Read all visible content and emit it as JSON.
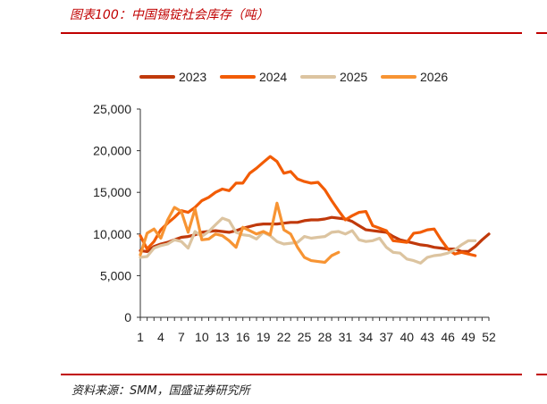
{
  "header": {
    "title": "图表100：中国锡锭社会库存（吨）"
  },
  "footer": {
    "source": "资料来源：SMM，国盛证券研究所"
  },
  "chart_data": {
    "type": "line",
    "title": "中国锡锭社会库存（吨）",
    "xlabel": "",
    "ylabel": "",
    "ylim": [
      0,
      25000
    ],
    "xlim": [
      1,
      52
    ],
    "yticks": [
      0,
      5000,
      10000,
      15000,
      20000,
      25000
    ],
    "ytick_labels": [
      "0",
      "5,000",
      "10,000",
      "15,000",
      "20,000",
      "25,000"
    ],
    "xticks": [
      1,
      4,
      7,
      10,
      13,
      16,
      19,
      22,
      25,
      28,
      31,
      34,
      37,
      40,
      43,
      46,
      49,
      52
    ],
    "grid": false,
    "legend_position": "top",
    "series": [
      {
        "name": "2023",
        "color": "#c0390b",
        "x": [
          1,
          2,
          3,
          4,
          5,
          6,
          7,
          8,
          9,
          10,
          11,
          12,
          13,
          14,
          15,
          16,
          17,
          18,
          19,
          20,
          21,
          22,
          23,
          24,
          25,
          26,
          27,
          28,
          29,
          30,
          31,
          32,
          33,
          34,
          35,
          36,
          37,
          38,
          39,
          40,
          41,
          42,
          43,
          44,
          45,
          46,
          47,
          48,
          49,
          50,
          51,
          52
        ],
        "values": [
          8000,
          7900,
          8500,
          8800,
          9000,
          9300,
          9600,
          9700,
          9900,
          10200,
          10300,
          10400,
          10300,
          10200,
          10400,
          10700,
          10900,
          11100,
          11200,
          11200,
          11200,
          11300,
          11400,
          11400,
          11600,
          11700,
          11700,
          11800,
          12000,
          11900,
          11800,
          11500,
          11000,
          10500,
          10400,
          10300,
          10200,
          9700,
          9300,
          9100,
          8900,
          8700,
          8600,
          8400,
          8300,
          8200,
          8200,
          7900,
          7900,
          8500,
          9300,
          10000
        ]
      },
      {
        "name": "2024",
        "color": "#f25c05",
        "x": [
          1,
          2,
          3,
          4,
          5,
          6,
          7,
          8,
          9,
          10,
          11,
          12,
          13,
          14,
          15,
          16,
          17,
          18,
          19,
          20,
          21,
          22,
          23,
          24,
          25,
          26,
          27,
          28,
          29,
          30,
          31,
          32,
          33,
          34,
          35,
          36,
          37,
          38,
          39,
          40,
          41,
          42,
          43,
          44,
          45,
          46,
          47,
          48,
          49,
          50
        ],
        "values": [
          9800,
          8200,
          9100,
          10500,
          11300,
          12000,
          12800,
          12600,
          13200,
          14000,
          14400,
          15000,
          15400,
          15200,
          16100,
          16100,
          17300,
          17900,
          18600,
          19300,
          18700,
          17300,
          17500,
          16600,
          16300,
          16100,
          16200,
          15300,
          14000,
          12800,
          11700,
          12200,
          12600,
          12700,
          11000,
          10700,
          10400,
          9200,
          9100,
          9000,
          10100,
          10200,
          10500,
          10600,
          9300,
          8200,
          7600,
          7800,
          7600,
          7400
        ]
      },
      {
        "name": "2025",
        "color": "#dcc4a0",
        "x": [
          1,
          2,
          3,
          4,
          5,
          6,
          7,
          8,
          9,
          10,
          11,
          12,
          13,
          14,
          15,
          16,
          17,
          18,
          19,
          20,
          21,
          22,
          23,
          24,
          25,
          26,
          27,
          28,
          29,
          30,
          31,
          32,
          33,
          34,
          35,
          36,
          37,
          38,
          39,
          40,
          41,
          42,
          43,
          44,
          45,
          46,
          47,
          48,
          49,
          50
        ],
        "values": [
          7200,
          7300,
          8300,
          8600,
          8800,
          9300,
          9100,
          8300,
          10300,
          9700,
          10300,
          11100,
          11900,
          11600,
          10200,
          9900,
          9800,
          9400,
          10200,
          9800,
          9100,
          8800,
          8900,
          9000,
          9700,
          9500,
          9600,
          9700,
          10200,
          10300,
          10000,
          10400,
          9300,
          9100,
          9200,
          9500,
          8400,
          7800,
          7700,
          7000,
          6800,
          6500,
          7200,
          7400,
          7500,
          7700,
          8100,
          8700,
          9200,
          9200
        ]
      },
      {
        "name": "2026",
        "color": "#f79433",
        "x": [
          1,
          2,
          3,
          4,
          5,
          6,
          7,
          8,
          9,
          10,
          11,
          12,
          13,
          14,
          15,
          16,
          17,
          18,
          19,
          20,
          21,
          22,
          23,
          24,
          25,
          26,
          27,
          28,
          29,
          30
        ],
        "values": [
          7500,
          10100,
          10600,
          9500,
          11700,
          13200,
          12700,
          10200,
          13000,
          9300,
          9400,
          10000,
          9800,
          9200,
          8400,
          10800,
          10400,
          10000,
          10300,
          9900,
          13700,
          10500,
          10000,
          8400,
          7200,
          6800,
          6700,
          6600,
          7400,
          7800
        ]
      }
    ]
  }
}
